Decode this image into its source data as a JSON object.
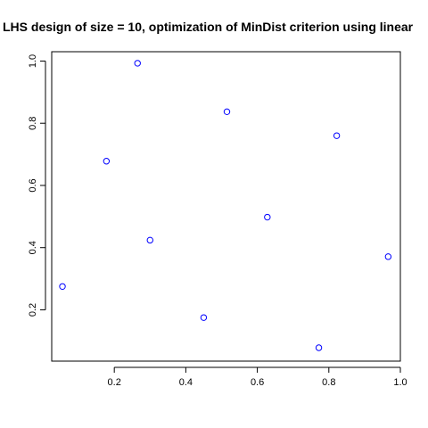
{
  "chart_data": {
    "type": "scatter",
    "title": "LHS design of size = 10, optimization of MinDist criterion using linear",
    "xlabel": "",
    "ylabel": "",
    "xlim": [
      0.025,
      1.0
    ],
    "ylim": [
      0.035,
      1.03
    ],
    "x_ticks": [
      0.2,
      0.4,
      0.6,
      0.8,
      1.0
    ],
    "x_tick_labels": [
      "0.2",
      "0.4",
      "0.6",
      "0.8",
      "1.0"
    ],
    "y_ticks": [
      0.2,
      0.4,
      0.6,
      0.8,
      1.0
    ],
    "y_tick_labels": [
      "0.2",
      "0.4",
      "0.6",
      "0.8",
      "1.0"
    ],
    "grid": false,
    "legend": "none",
    "point_color": "#0000ff",
    "points": [
      {
        "x": 0.055,
        "y": 0.275
      },
      {
        "x": 0.178,
        "y": 0.678
      },
      {
        "x": 0.265,
        "y": 0.993
      },
      {
        "x": 0.3,
        "y": 0.424
      },
      {
        "x": 0.45,
        "y": 0.175
      },
      {
        "x": 0.515,
        "y": 0.837
      },
      {
        "x": 0.628,
        "y": 0.498
      },
      {
        "x": 0.772,
        "y": 0.078
      },
      {
        "x": 0.822,
        "y": 0.76
      },
      {
        "x": 0.966,
        "y": 0.371
      }
    ]
  }
}
